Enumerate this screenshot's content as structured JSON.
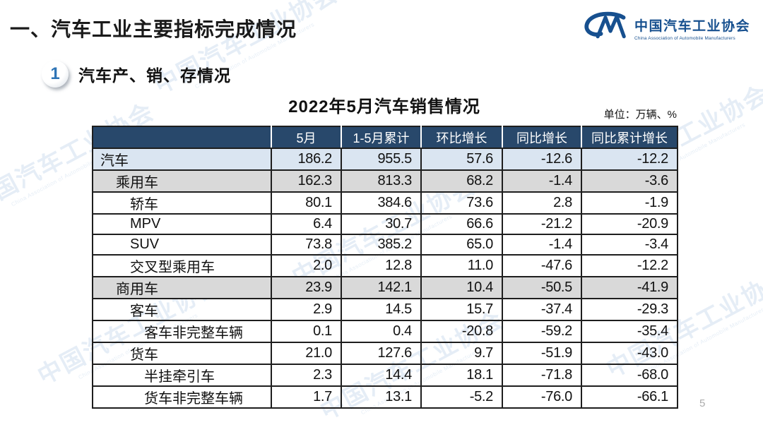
{
  "slide": {
    "title": "一、汽车工业主要指标完成情况",
    "page_number": "5"
  },
  "logo": {
    "name_zh": "中国汽车工业协会",
    "name_en": "China Association of Automobile Manufacturers"
  },
  "section": {
    "badge_number": "1",
    "title": "汽车产、销、存情况"
  },
  "table": {
    "title": "2022年5月汽车销售情况",
    "unit_note": "单位：万辆、%",
    "columns": [
      "",
      "5月",
      "1-5月累计",
      "环比增长",
      "同比增长",
      "同比累计增长"
    ],
    "rows": [
      {
        "label": "汽车",
        "indent": 0,
        "bg": "blue",
        "values": [
          "186.2",
          "955.5",
          "57.6",
          "-12.6",
          "-12.2"
        ]
      },
      {
        "label": "乘用车",
        "indent": 1,
        "bg": "gray",
        "values": [
          "162.3",
          "813.3",
          "68.2",
          "-1.4",
          "-3.6"
        ]
      },
      {
        "label": "轿车",
        "indent": 2,
        "bg": "white",
        "values": [
          "80.1",
          "384.6",
          "73.6",
          "2.8",
          "-1.9"
        ]
      },
      {
        "label": "MPV",
        "indent": 2,
        "bg": "white",
        "values": [
          "6.4",
          "30.7",
          "66.6",
          "-21.2",
          "-20.9"
        ]
      },
      {
        "label": "SUV",
        "indent": 2,
        "bg": "white",
        "values": [
          "73.8",
          "385.2",
          "65.0",
          "-1.4",
          "-3.4"
        ]
      },
      {
        "label": "交叉型乘用车",
        "indent": 2,
        "bg": "white",
        "values": [
          "2.0",
          "12.8",
          "11.0",
          "-47.6",
          "-12.2"
        ]
      },
      {
        "label": "商用车",
        "indent": 1,
        "bg": "gray",
        "values": [
          "23.9",
          "142.1",
          "10.4",
          "-50.5",
          "-41.9"
        ]
      },
      {
        "label": "客车",
        "indent": 2,
        "bg": "white",
        "values": [
          "2.9",
          "14.5",
          "15.7",
          "-37.4",
          "-29.3"
        ]
      },
      {
        "label": "客车非完整车辆",
        "indent": 3,
        "bg": "white",
        "values": [
          "0.1",
          "0.4",
          "-20.8",
          "-59.2",
          "-35.4"
        ]
      },
      {
        "label": "货车",
        "indent": 2,
        "bg": "white",
        "values": [
          "21.0",
          "127.6",
          "9.7",
          "-51.9",
          "-43.0"
        ]
      },
      {
        "label": "半挂牵引车",
        "indent": 3,
        "bg": "white",
        "values": [
          "2.3",
          "14.4",
          "18.1",
          "-71.8",
          "-68.0"
        ]
      },
      {
        "label": "货车非完整车辆",
        "indent": 3,
        "bg": "white",
        "values": [
          "1.7",
          "13.1",
          "-5.2",
          "-76.0",
          "-66.1"
        ]
      }
    ]
  },
  "colors": {
    "header_bg": "#28486B",
    "row_highlight_blue": "#DAE5F1",
    "row_highlight_gray": "#D9D9D9",
    "logo_blue": "#17508F",
    "badge_blue": "#2E74B6",
    "watermark_blue": "#C3D6EA",
    "border_dark": "#1E1E1E"
  }
}
